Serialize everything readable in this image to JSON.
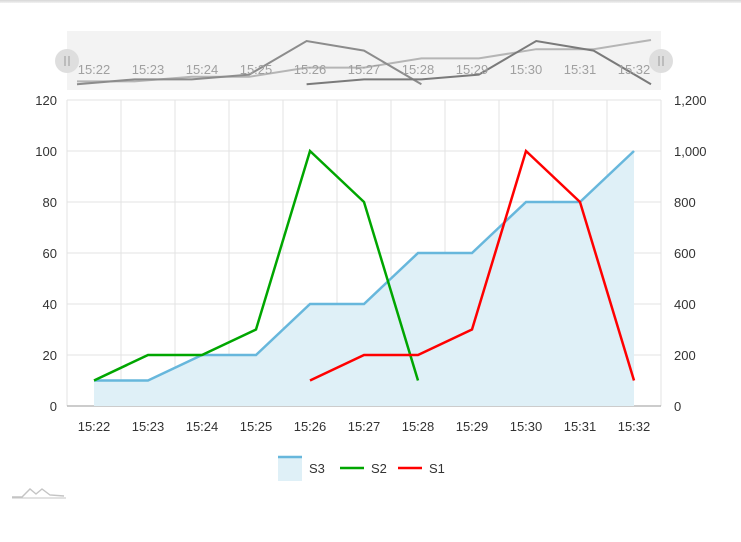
{
  "chart_data": {
    "type": "line",
    "categories": [
      "15:22",
      "15:23",
      "15:24",
      "15:25",
      "15:26",
      "15:27",
      "15:28",
      "15:29",
      "15:30",
      "15:31",
      "15:32"
    ],
    "series": [
      {
        "name": "S3",
        "kind": "area",
        "axis": "right",
        "color": "#67b7dc",
        "values": [
          100,
          100,
          200,
          200,
          400,
          400,
          600,
          600,
          800,
          800,
          1000
        ]
      },
      {
        "name": "S2",
        "kind": "line",
        "axis": "left",
        "color": "#00a600",
        "values": [
          10,
          20,
          20,
          30,
          100,
          80,
          10,
          null,
          null,
          null,
          null
        ]
      },
      {
        "name": "S1",
        "kind": "line",
        "axis": "left",
        "color": "#ff0000",
        "values": [
          null,
          null,
          null,
          null,
          10,
          20,
          20,
          30,
          100,
          80,
          10
        ]
      }
    ],
    "y_left": {
      "ylim": [
        0,
        120
      ],
      "ticks": [
        "0",
        "20",
        "40",
        "60",
        "80",
        "100",
        "120"
      ]
    },
    "y_right": {
      "ylim": [
        0,
        1200
      ],
      "ticks": [
        "0",
        "200",
        "400",
        "600",
        "800",
        "1,000",
        "1,200"
      ]
    },
    "grid": true,
    "legend": "bottom",
    "scrollbar": "top"
  },
  "colors": {
    "area_fill": "#dff0f7",
    "grid": "#e3e3e3",
    "axis_text": "#333333"
  },
  "icons": {
    "watermark": "chart-logo-icon"
  }
}
